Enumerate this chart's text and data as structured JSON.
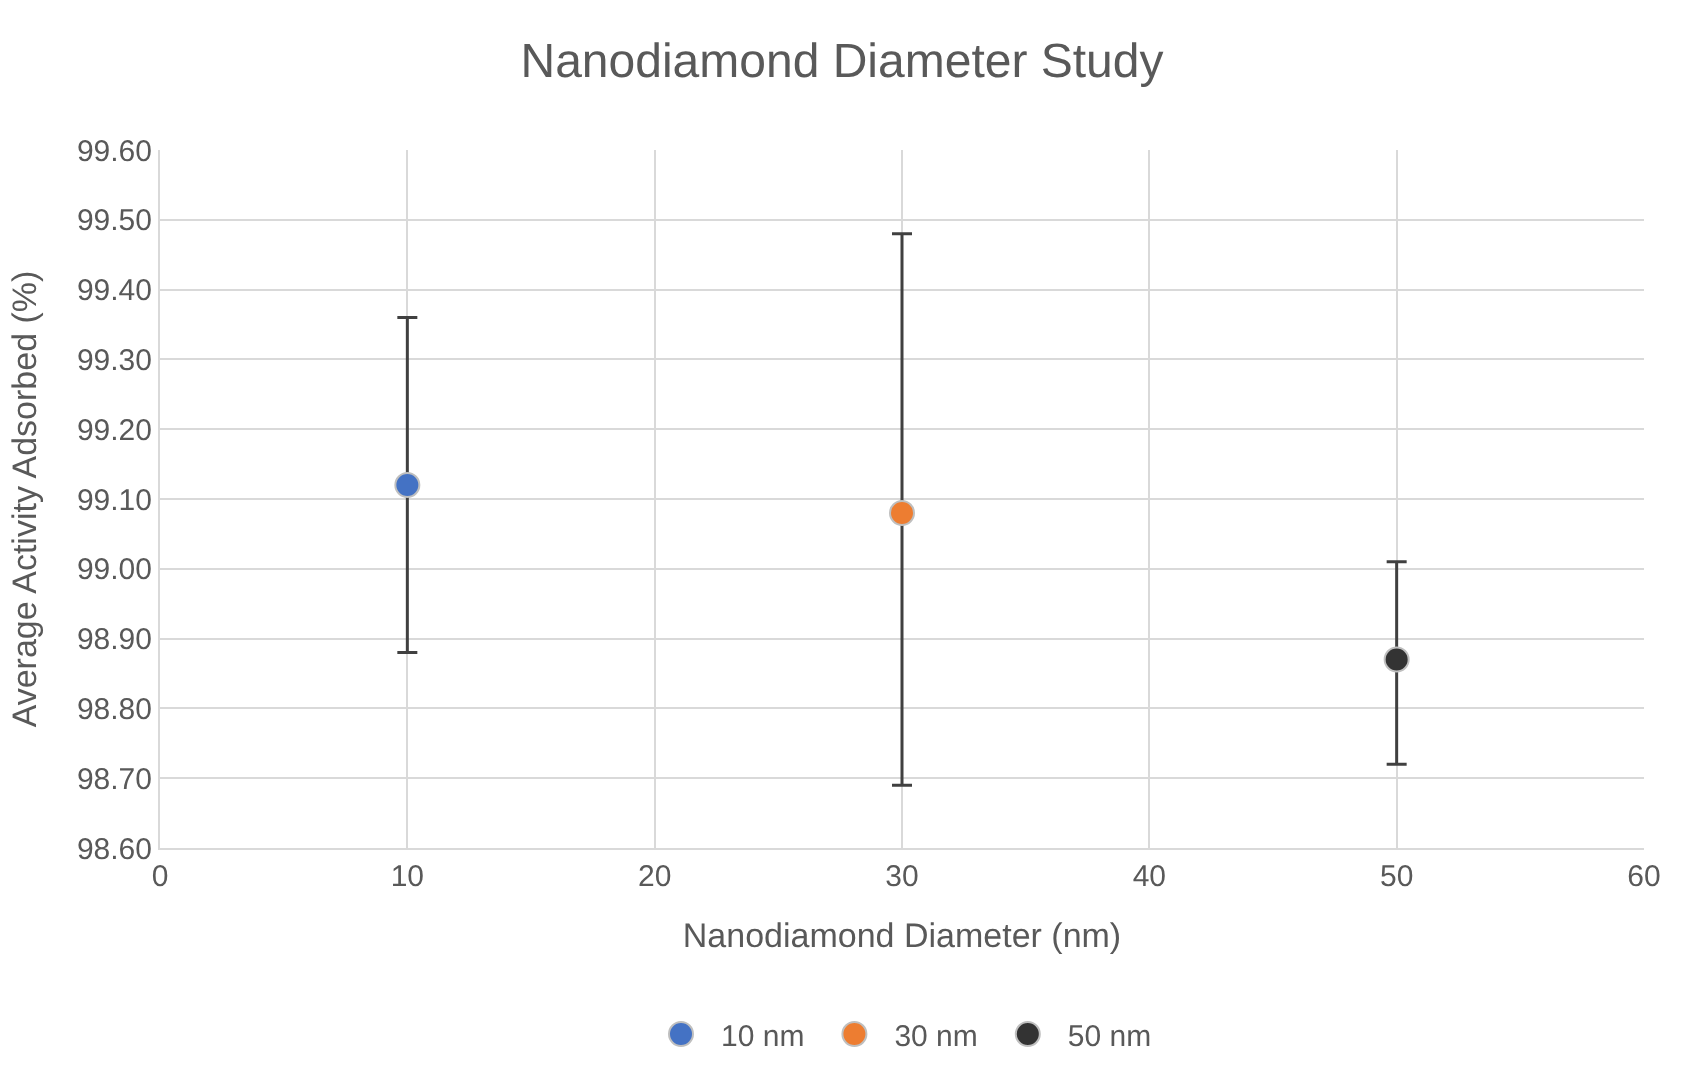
{
  "chart_data": {
    "type": "scatter",
    "title": "Nanodiamond Diameter Study",
    "xlabel": "Nanodiamond Diameter (nm)",
    "ylabel": "Average Activity Adsorbed (%)",
    "series": [
      {
        "name": "10 nm",
        "color": "#4472c4",
        "x": [
          10
        ],
        "values": [
          99.12
        ],
        "errors": [
          [
            98.88,
            99.36
          ]
        ]
      },
      {
        "name": "30 nm",
        "color": "#ed7d31",
        "x": [
          30
        ],
        "values": [
          99.08
        ],
        "errors": [
          [
            98.69,
            99.48
          ]
        ]
      },
      {
        "name": "50 nm",
        "color": "#333333",
        "x": [
          50
        ],
        "values": [
          98.87
        ],
        "errors": [
          [
            98.72,
            99.01
          ]
        ]
      }
    ],
    "xlim": [
      0,
      60
    ],
    "xticks": [
      0,
      10,
      20,
      30,
      40,
      50,
      60
    ],
    "ylim": [
      98.6,
      99.6
    ],
    "yticks": [
      {
        "value": 98.6,
        "label": "98.60"
      },
      {
        "value": 98.7,
        "label": "98.70"
      },
      {
        "value": 98.8,
        "label": "98.80"
      },
      {
        "value": 98.9,
        "label": "98.90"
      },
      {
        "value": 99.0,
        "label": "99.00"
      },
      {
        "value": 99.1,
        "label": "99.10"
      },
      {
        "value": 99.2,
        "label": "99.20"
      },
      {
        "value": 99.3,
        "label": "99.30"
      },
      {
        "value": 99.4,
        "label": "99.40"
      },
      {
        "value": 99.5,
        "label": "99.50"
      },
      {
        "value": 99.6,
        "label": "99.60"
      }
    ],
    "grid": true,
    "legend": "bottom",
    "marker": "circle"
  }
}
